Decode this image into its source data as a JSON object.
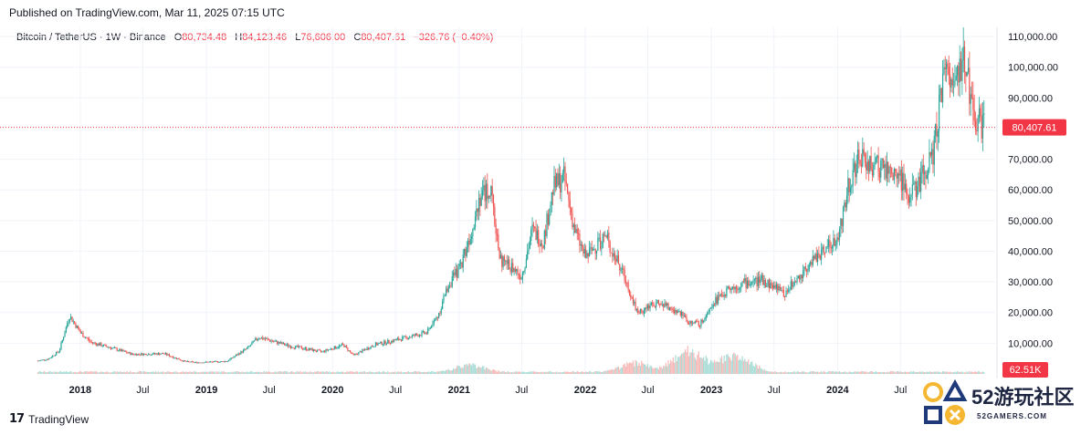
{
  "header": {
    "published": "Published on TradingView.com, Mar 11, 2025 07:15 UTC"
  },
  "legend": {
    "symbol": "Bitcoin / TetherUS · 1W · Binance",
    "open_label": "O",
    "open": "80,734.48",
    "high_label": "H",
    "high": "84,123.46",
    "low_label": "L",
    "low": "76,606.00",
    "close_label": "C",
    "close": "80,407.61",
    "change": "−326.76 (−0.40%)"
  },
  "footer": {
    "brand": "TradingView",
    "logo": "17"
  },
  "watermark": {
    "title": "52游玩社区",
    "sub": "52GAMERS.COM",
    "icons": [
      "circle-icon",
      "triangle-icon",
      "square-icon",
      "cross-icon"
    ]
  },
  "colors": {
    "up": "#26a69a",
    "down": "#ef5350",
    "last_price": "#f23645",
    "volume_up": "#a8dcd6",
    "volume_down": "#f7b8b6"
  },
  "chart_data": {
    "type": "candlestick",
    "x_axis": "time",
    "y_axis_labels": [
      "110,000.00",
      "100,000.00",
      "90,000.00",
      "70,000.00",
      "60,000.00",
      "50,000.00",
      "40,000.00",
      "30,000.00",
      "20,000.00",
      "10,000.00"
    ],
    "x_tick_labels": [
      "2018",
      "Jul",
      "2019",
      "Jul",
      "2020",
      "Jul",
      "2021",
      "Jul",
      "2022",
      "Jul",
      "2023",
      "Jul",
      "2024",
      "Jul"
    ],
    "last_price_label": "80,407.61",
    "volume_label": "62.51K",
    "ylim": [
      0,
      113000
    ],
    "series_anchor_points": [
      {
        "date": "2017-09",
        "price": 4300
      },
      {
        "date": "2017-10",
        "price": 4900
      },
      {
        "date": "2017-11",
        "price": 7500
      },
      {
        "date": "2017-12",
        "price": 19000
      },
      {
        "date": "2018-01",
        "price": 13500
      },
      {
        "date": "2018-02",
        "price": 10300
      },
      {
        "date": "2018-04",
        "price": 8500
      },
      {
        "date": "2018-06",
        "price": 6400
      },
      {
        "date": "2018-09",
        "price": 6600
      },
      {
        "date": "2018-11",
        "price": 4000
      },
      {
        "date": "2018-12",
        "price": 3700
      },
      {
        "date": "2019-03",
        "price": 4100
      },
      {
        "date": "2019-05",
        "price": 8500
      },
      {
        "date": "2019-06",
        "price": 12000
      },
      {
        "date": "2019-07",
        "price": 11000
      },
      {
        "date": "2019-09",
        "price": 9000
      },
      {
        "date": "2019-10",
        "price": 8500
      },
      {
        "date": "2019-12",
        "price": 7200
      },
      {
        "date": "2020-02",
        "price": 9500
      },
      {
        "date": "2020-03",
        "price": 6000
      },
      {
        "date": "2020-05",
        "price": 9500
      },
      {
        "date": "2020-07",
        "price": 11000
      },
      {
        "date": "2020-10",
        "price": 13500
      },
      {
        "date": "2020-11",
        "price": 19000
      },
      {
        "date": "2020-12",
        "price": 29000
      },
      {
        "date": "2021-01",
        "price": 34000
      },
      {
        "date": "2021-02",
        "price": 45000
      },
      {
        "date": "2021-03",
        "price": 58000
      },
      {
        "date": "2021-04",
        "price": 60000
      },
      {
        "date": "2021-05",
        "price": 37000
      },
      {
        "date": "2021-06",
        "price": 35000
      },
      {
        "date": "2021-07",
        "price": 32000
      },
      {
        "date": "2021-08",
        "price": 47000
      },
      {
        "date": "2021-09",
        "price": 43000
      },
      {
        "date": "2021-10",
        "price": 61000
      },
      {
        "date": "2021-11",
        "price": 64000
      },
      {
        "date": "2021-12",
        "price": 47000
      },
      {
        "date": "2022-01",
        "price": 38000
      },
      {
        "date": "2022-03",
        "price": 45000
      },
      {
        "date": "2022-05",
        "price": 30000
      },
      {
        "date": "2022-06",
        "price": 20000
      },
      {
        "date": "2022-08",
        "price": 23000
      },
      {
        "date": "2022-10",
        "price": 20000
      },
      {
        "date": "2022-11",
        "price": 16500
      },
      {
        "date": "2022-12",
        "price": 16500
      },
      {
        "date": "2023-01",
        "price": 23000
      },
      {
        "date": "2023-03",
        "price": 28000
      },
      {
        "date": "2023-04",
        "price": 29500
      },
      {
        "date": "2023-06",
        "price": 30500
      },
      {
        "date": "2023-08",
        "price": 26000
      },
      {
        "date": "2023-10",
        "price": 34500
      },
      {
        "date": "2023-12",
        "price": 42000
      },
      {
        "date": "2024-01",
        "price": 43000
      },
      {
        "date": "2024-02",
        "price": 62000
      },
      {
        "date": "2024-03",
        "price": 70000
      },
      {
        "date": "2024-05",
        "price": 67000
      },
      {
        "date": "2024-07",
        "price": 64000
      },
      {
        "date": "2024-08",
        "price": 58000
      },
      {
        "date": "2024-10",
        "price": 70000
      },
      {
        "date": "2024-11",
        "price": 96000
      },
      {
        "date": "2024-12",
        "price": 98000
      },
      {
        "date": "2025-01",
        "price": 102000
      },
      {
        "date": "2025-02",
        "price": 84000
      },
      {
        "date": "2025-03",
        "price": 80400
      }
    ],
    "volume_peaks": [
      {
        "date": "2021-02",
        "volume": 0.35
      },
      {
        "date": "2022-06",
        "volume": 0.45
      },
      {
        "date": "2022-11",
        "volume": 0.9
      },
      {
        "date": "2023-03",
        "volume": 0.75
      }
    ]
  }
}
